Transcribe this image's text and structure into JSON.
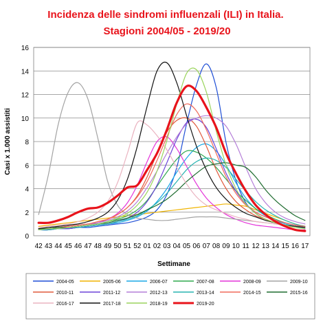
{
  "chart_data": {
    "type": "line",
    "title": "Incidenza delle sindromi influenzali (ILI) in Italia.",
    "subtitle": "Stagioni 2004/05 - 2019/20",
    "xlabel": "Settimane",
    "ylabel": "Casi x 1.000 assistiti",
    "ylim": [
      0,
      16
    ],
    "yticks": [
      0,
      2,
      4,
      6,
      8,
      10,
      12,
      14,
      16
    ],
    "grid": true,
    "legend_position": "bottom",
    "categories": [
      "42",
      "43",
      "44",
      "45",
      "46",
      "47",
      "48",
      "49",
      "50",
      "51",
      "52",
      "01",
      "02",
      "03",
      "04",
      "05",
      "06",
      "07",
      "08",
      "09",
      "10",
      "11",
      "12",
      "13",
      "14",
      "15",
      "16",
      "17"
    ],
    "series": [
      {
        "name": "2004-05",
        "color": "#1f4fd6",
        "width": 1.2,
        "values": [
          0.5,
          0.5,
          0.6,
          0.6,
          0.7,
          0.7,
          0.8,
          0.9,
          1.0,
          1.1,
          1.3,
          1.6,
          2.2,
          3.5,
          5.8,
          9.5,
          12.8,
          14.6,
          12.6,
          7.9,
          4.7,
          2.8,
          1.9,
          1.4,
          1.1,
          0.9,
          0.8,
          0.7
        ]
      },
      {
        "name": "2005-06",
        "color": "#f0b400",
        "width": 1.2,
        "values": [
          0.8,
          0.9,
          1.0,
          1.1,
          1.2,
          1.3,
          1.4,
          1.5,
          1.6,
          1.7,
          1.8,
          1.9,
          2.0,
          2.1,
          2.2,
          2.3,
          2.4,
          2.5,
          2.6,
          2.7,
          2.6,
          2.5,
          2.2,
          1.9,
          1.6,
          1.3,
          1.0,
          0.8
        ]
      },
      {
        "name": "2006-07",
        "color": "#19a7e6",
        "width": 1.2,
        "values": [
          0.5,
          0.5,
          0.6,
          0.6,
          0.7,
          0.8,
          0.9,
          1.0,
          1.1,
          1.3,
          1.6,
          2.1,
          2.9,
          4.0,
          5.4,
          6.6,
          7.5,
          7.8,
          7.2,
          6.0,
          4.5,
          3.2,
          2.3,
          1.7,
          1.3,
          1.0,
          0.8,
          0.6
        ]
      },
      {
        "name": "2007-08",
        "color": "#2fa84f",
        "width": 1.2,
        "values": [
          0.6,
          0.6,
          0.7,
          0.7,
          0.8,
          0.9,
          1.0,
          1.2,
          1.4,
          1.7,
          2.2,
          3.0,
          4.2,
          5.4,
          6.5,
          7.2,
          7.1,
          6.6,
          5.8,
          4.8,
          3.8,
          3.0,
          2.3,
          1.8,
          1.4,
          1.1,
          0.9,
          0.7
        ]
      },
      {
        "name": "2008-09",
        "color": "#e433d9",
        "width": 1.2,
        "values": [
          0.5,
          0.5,
          0.6,
          0.7,
          0.8,
          0.9,
          1.1,
          1.4,
          1.9,
          2.8,
          4.3,
          6.3,
          8.0,
          8.4,
          7.4,
          5.9,
          4.4,
          3.2,
          2.4,
          1.8,
          1.4,
          1.1,
          0.9,
          0.8,
          0.7,
          0.6,
          0.5,
          0.5
        ]
      },
      {
        "name": "2009-10",
        "color": "#a3a3a3",
        "width": 1.2,
        "values": [
          1.8,
          5.2,
          9.5,
          12.2,
          13.0,
          11.6,
          8.3,
          4.6,
          2.6,
          1.8,
          1.5,
          1.4,
          1.3,
          1.3,
          1.4,
          1.5,
          1.6,
          1.6,
          1.6,
          1.5,
          1.4,
          1.3,
          1.2,
          1.1,
          1.0,
          0.9,
          0.8,
          0.7
        ]
      },
      {
        "name": "2010-11",
        "color": "#e0583a",
        "width": 1.2,
        "values": [
          0.6,
          0.6,
          0.7,
          0.8,
          0.9,
          1.0,
          1.2,
          1.4,
          1.8,
          2.4,
          3.4,
          5.0,
          7.0,
          8.8,
          9.8,
          10.0,
          9.3,
          7.6,
          5.6,
          4.0,
          2.9,
          2.2,
          1.7,
          1.4,
          1.1,
          0.9,
          0.8,
          0.7
        ]
      },
      {
        "name": "2011-12",
        "color": "#6b42d8",
        "width": 1.2,
        "values": [
          0.5,
          0.5,
          0.6,
          0.6,
          0.7,
          0.8,
          0.9,
          1.0,
          1.2,
          1.5,
          2.0,
          2.9,
          4.3,
          6.2,
          8.2,
          9.6,
          9.9,
          9.2,
          7.4,
          5.3,
          3.8,
          2.7,
          2.0,
          1.6,
          1.3,
          1.1,
          0.9,
          0.8
        ]
      },
      {
        "name": "2012-13",
        "color": "#b47ed8",
        "width": 1.2,
        "values": [
          0.6,
          0.6,
          0.7,
          0.8,
          0.9,
          1.0,
          1.1,
          1.3,
          1.6,
          2.1,
          2.9,
          4.1,
          5.5,
          7.0,
          8.4,
          9.5,
          10.0,
          10.2,
          10.0,
          9.3,
          7.8,
          5.8,
          4.0,
          2.8,
          2.0,
          1.5,
          1.2,
          1.0
        ]
      },
      {
        "name": "2013-14",
        "color": "#27b3b1",
        "width": 1.2,
        "values": [
          0.5,
          0.5,
          0.6,
          0.7,
          0.7,
          0.8,
          0.9,
          1.0,
          1.2,
          1.4,
          1.7,
          2.2,
          2.8,
          3.6,
          4.6,
          5.6,
          6.3,
          6.6,
          6.4,
          5.8,
          4.8,
          3.8,
          2.9,
          2.2,
          1.7,
          1.3,
          1.0,
          0.8
        ]
      },
      {
        "name": "2014-15",
        "color": "#f06a5a",
        "width": 1.2,
        "values": [
          0.6,
          0.6,
          0.7,
          0.8,
          0.9,
          1.0,
          1.2,
          1.4,
          1.8,
          2.4,
          3.3,
          4.6,
          6.4,
          8.4,
          10.3,
          11.2,
          10.6,
          9.0,
          7.0,
          5.0,
          3.6,
          2.6,
          2.0,
          1.6,
          1.3,
          1.1,
          0.9,
          0.8
        ]
      },
      {
        "name": "2015-16",
        "color": "#1d6b2e",
        "width": 1.2,
        "values": [
          0.6,
          0.6,
          0.7,
          0.7,
          0.8,
          0.9,
          1.0,
          1.1,
          1.3,
          1.5,
          1.8,
          2.2,
          2.6,
          3.1,
          3.8,
          4.6,
          5.3,
          5.9,
          6.1,
          6.2,
          6.0,
          5.8,
          5.0,
          3.9,
          3.0,
          2.3,
          1.7,
          1.3
        ]
      },
      {
        "name": "2016-17",
        "color": "#eab3c0",
        "width": 1.2,
        "values": [
          0.7,
          0.8,
          0.9,
          1.0,
          1.2,
          1.5,
          2.0,
          2.9,
          4.5,
          7.0,
          9.6,
          9.4,
          8.5,
          7.3,
          5.8,
          4.4,
          3.3,
          2.6,
          2.2,
          1.9,
          1.6,
          1.4,
          1.2,
          1.1,
          1.0,
          0.9,
          0.8,
          0.7
        ]
      },
      {
        "name": "2017-18",
        "color": "#111111",
        "width": 1.2,
        "values": [
          0.6,
          0.7,
          0.8,
          0.9,
          1.0,
          1.2,
          1.5,
          2.0,
          3.0,
          4.8,
          7.6,
          11.0,
          14.0,
          14.7,
          13.0,
          10.2,
          7.6,
          5.6,
          4.1,
          3.1,
          2.4,
          1.9,
          1.6,
          1.3,
          1.1,
          0.9,
          0.8,
          0.7
        ]
      },
      {
        "name": "2018-19",
        "color": "#9ad45c",
        "width": 1.2,
        "values": [
          0.5,
          0.6,
          0.6,
          0.7,
          0.8,
          0.9,
          1.0,
          1.2,
          1.5,
          1.9,
          2.6,
          3.7,
          5.5,
          8.1,
          11.2,
          13.8,
          14.1,
          12.2,
          8.9,
          6.0,
          4.0,
          2.7,
          1.9,
          1.4,
          1.1,
          0.9,
          0.7,
          0.6
        ]
      },
      {
        "name": "2019-20",
        "color": "#e8131b",
        "width": 3.2,
        "values": [
          1.1,
          1.1,
          1.3,
          1.6,
          2.0,
          2.3,
          2.4,
          2.8,
          3.4,
          4.1,
          4.3,
          5.6,
          7.0,
          9.0,
          11.3,
          12.7,
          12.3,
          10.9,
          9.2,
          7.0,
          5.3,
          3.8,
          2.6,
          1.8,
          1.2,
          0.8,
          0.5,
          0.4
        ]
      }
    ]
  }
}
